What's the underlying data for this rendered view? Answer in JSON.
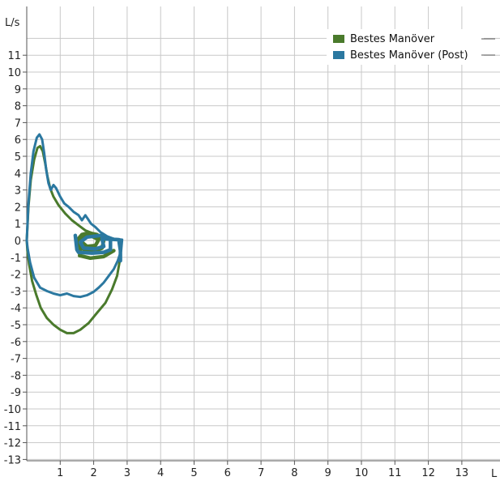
{
  "chart_data": {
    "type": "line",
    "x_unit_label": "L",
    "y_unit_label": "L/s",
    "xlim": [
      0,
      14.5
    ],
    "ylim": [
      -13,
      12.5
    ],
    "x_ticks": [
      1,
      2,
      3,
      4,
      5,
      6,
      7,
      8,
      9,
      10,
      11,
      12,
      13
    ],
    "y_ticks": [
      11,
      10,
      9,
      8,
      7,
      6,
      5,
      4,
      3,
      2,
      1,
      0,
      -1,
      -2,
      -3,
      -4,
      -5,
      -6,
      -7,
      -8,
      -9,
      -10,
      -11,
      -12,
      -13
    ],
    "grid": true,
    "legend_position": "top-right",
    "series": [
      {
        "name": "Bestes Manöver",
        "color": "#4a7a2c",
        "points": [
          [
            0.0,
            0.0
          ],
          [
            0.05,
            2.0
          ],
          [
            0.12,
            3.6
          ],
          [
            0.22,
            4.8
          ],
          [
            0.32,
            5.5
          ],
          [
            0.4,
            5.6
          ],
          [
            0.48,
            5.3
          ],
          [
            0.55,
            4.6
          ],
          [
            0.62,
            3.8
          ],
          [
            0.7,
            3.1
          ],
          [
            0.8,
            2.6
          ],
          [
            0.95,
            2.1
          ],
          [
            1.15,
            1.6
          ],
          [
            1.35,
            1.2
          ],
          [
            1.55,
            0.9
          ],
          [
            1.75,
            0.6
          ],
          [
            2.0,
            0.4
          ],
          [
            2.3,
            0.2
          ],
          [
            2.6,
            0.1
          ],
          [
            2.8,
            0.0
          ],
          [
            2.82,
            -0.5
          ],
          [
            2.78,
            -1.2
          ],
          [
            2.7,
            -2.1
          ],
          [
            2.55,
            -2.9
          ],
          [
            2.35,
            -3.7
          ],
          [
            2.1,
            -4.3
          ],
          [
            1.85,
            -4.9
          ],
          [
            1.6,
            -5.3
          ],
          [
            1.4,
            -5.5
          ],
          [
            1.2,
            -5.5
          ],
          [
            1.0,
            -5.3
          ],
          [
            0.8,
            -5.0
          ],
          [
            0.6,
            -4.6
          ],
          [
            0.42,
            -4.0
          ],
          [
            0.28,
            -3.2
          ],
          [
            0.16,
            -2.4
          ],
          [
            0.07,
            -1.4
          ],
          [
            0.02,
            -0.6
          ],
          [
            0.0,
            0.0
          ]
        ]
      },
      {
        "name": "Bestes Manöver (Post)",
        "color": "#2b78a0",
        "points": [
          [
            0.0,
            0.0
          ],
          [
            0.05,
            2.2
          ],
          [
            0.12,
            4.0
          ],
          [
            0.2,
            5.3
          ],
          [
            0.3,
            6.1
          ],
          [
            0.38,
            6.3
          ],
          [
            0.46,
            6.0
          ],
          [
            0.52,
            5.2
          ],
          [
            0.58,
            4.2
          ],
          [
            0.65,
            3.4
          ],
          [
            0.72,
            3.0
          ],
          [
            0.8,
            3.3
          ],
          [
            0.88,
            3.1
          ],
          [
            1.0,
            2.6
          ],
          [
            1.12,
            2.2
          ],
          [
            1.25,
            2.0
          ],
          [
            1.4,
            1.7
          ],
          [
            1.55,
            1.5
          ],
          [
            1.65,
            1.2
          ],
          [
            1.75,
            1.5
          ],
          [
            1.82,
            1.3
          ],
          [
            1.92,
            1.0
          ],
          [
            2.05,
            0.8
          ],
          [
            2.2,
            0.5
          ],
          [
            2.4,
            0.25
          ],
          [
            2.6,
            0.1
          ],
          [
            2.85,
            0.05
          ],
          [
            2.82,
            -0.6
          ],
          [
            2.72,
            -1.2
          ],
          [
            2.6,
            -1.7
          ],
          [
            2.45,
            -2.1
          ],
          [
            2.3,
            -2.5
          ],
          [
            2.15,
            -2.8
          ],
          [
            2.0,
            -3.05
          ],
          [
            1.8,
            -3.25
          ],
          [
            1.6,
            -3.35
          ],
          [
            1.4,
            -3.3
          ],
          [
            1.2,
            -3.15
          ],
          [
            1.0,
            -3.25
          ],
          [
            0.8,
            -3.15
          ],
          [
            0.6,
            -3.0
          ],
          [
            0.4,
            -2.8
          ],
          [
            0.22,
            -2.2
          ],
          [
            0.1,
            -1.3
          ],
          [
            0.03,
            -0.5
          ],
          [
            0.0,
            0.0
          ]
        ]
      },
      {
        "name": "",
        "color": "#4a7a2c",
        "width": 4.5,
        "points": [
          [
            1.5,
            0.0
          ],
          [
            1.65,
            0.35
          ],
          [
            1.85,
            0.45
          ],
          [
            2.1,
            0.35
          ],
          [
            2.3,
            0.0
          ],
          [
            2.25,
            -0.45
          ],
          [
            2.0,
            -0.65
          ],
          [
            1.75,
            -0.6
          ],
          [
            1.55,
            -0.3
          ],
          [
            1.5,
            0.0
          ],
          [
            1.7,
            0.2
          ],
          [
            1.95,
            0.25
          ],
          [
            2.15,
            0.05
          ],
          [
            2.05,
            -0.3
          ],
          [
            1.8,
            -0.35
          ],
          [
            1.62,
            -0.05
          ],
          [
            1.58,
            -0.9
          ],
          [
            1.9,
            -1.05
          ],
          [
            2.3,
            -0.95
          ],
          [
            2.6,
            -0.6
          ]
        ]
      },
      {
        "name": "",
        "color": "#2b78a0",
        "width": 4.5,
        "points": [
          [
            1.45,
            0.3
          ],
          [
            1.5,
            -0.55
          ],
          [
            1.55,
            -0.7
          ],
          [
            1.95,
            -0.75
          ],
          [
            2.3,
            -0.7
          ],
          [
            2.5,
            -0.55
          ],
          [
            2.5,
            0.05
          ],
          [
            2.2,
            0.3
          ],
          [
            1.8,
            0.2
          ],
          [
            1.6,
            -0.1
          ],
          [
            1.7,
            -0.45
          ],
          [
            2.05,
            -0.5
          ],
          [
            2.3,
            -0.35
          ],
          [
            2.25,
            0.1
          ],
          [
            2.75,
            0.05
          ],
          [
            2.8,
            -0.6
          ],
          [
            2.8,
            -1.2
          ]
        ]
      }
    ]
  }
}
